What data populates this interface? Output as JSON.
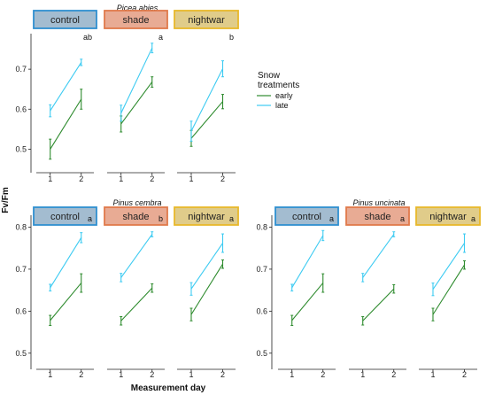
{
  "figure": {
    "ylabel": "Fv/Fm",
    "xlabel": "Measurement day",
    "legend": {
      "title_line1": "Snow",
      "title_line2": "treatments",
      "placement": "right of top row",
      "entries": [
        {
          "name": "early",
          "color": "#2e8b2e"
        },
        {
          "name": "late",
          "color": "#3dcbf2"
        }
      ]
    }
  },
  "colors": {
    "early": "#2e8b2e",
    "late": "#3dcbf2",
    "strip": {
      "control": {
        "fill": "#a3bcd0",
        "border": "#2f8fd0"
      },
      "shade": {
        "fill": "#e8ab94",
        "border": "#e07a4a"
      },
      "nightwar": {
        "fill": "#e0cc8a",
        "border": "#e8b82a"
      }
    }
  },
  "chart_data": [
    {
      "type": "line",
      "title": "Picea abies",
      "ylim": [
        0.45,
        0.78
      ],
      "yticks": [
        "0.5",
        "0.6",
        "0.7"
      ],
      "x": [
        "1",
        "2"
      ],
      "panels": [
        {
          "name": "control",
          "letter": "ab",
          "series": [
            {
              "name": "early",
              "values": [
                0.5,
                0.625
              ],
              "err": [
                0.025,
                0.025
              ]
            },
            {
              "name": "late",
              "values": [
                0.596,
                0.717
              ],
              "err": [
                0.015,
                0.008
              ]
            }
          ]
        },
        {
          "name": "shade",
          "letter": "a",
          "series": [
            {
              "name": "early",
              "values": [
                0.563,
                0.668
              ],
              "err": [
                0.02,
                0.013
              ]
            },
            {
              "name": "late",
              "values": [
                0.59,
                0.753
              ],
              "err": [
                0.02,
                0.012
              ]
            }
          ]
        },
        {
          "name": "nightwar",
          "letter": "b",
          "series": [
            {
              "name": "early",
              "values": [
                0.527,
                0.619
              ],
              "err": [
                0.02,
                0.018
              ]
            },
            {
              "name": "late",
              "values": [
                0.545,
                0.701
              ],
              "err": [
                0.025,
                0.02
              ]
            }
          ]
        }
      ]
    },
    {
      "type": "line",
      "title": "Pinus cembra",
      "ylim": [
        0.47,
        0.82
      ],
      "yticks": [
        "0.5",
        "0.6",
        "0.7",
        "0.8"
      ],
      "x": [
        "1",
        "2"
      ],
      "panels": [
        {
          "name": "control",
          "letter": "a",
          "series": [
            {
              "name": "early",
              "values": [
                0.578,
                0.667
              ],
              "err": [
                0.012,
                0.022
              ]
            },
            {
              "name": "late",
              "values": [
                0.656,
                0.775
              ],
              "err": [
                0.008,
                0.012
              ]
            }
          ]
        },
        {
          "name": "shade",
          "letter": "b",
          "series": [
            {
              "name": "early",
              "values": [
                0.577,
                0.655
              ],
              "err": [
                0.01,
                0.01
              ]
            },
            {
              "name": "late",
              "values": [
                0.68,
                0.783
              ],
              "err": [
                0.01,
                0.006
              ]
            }
          ]
        },
        {
          "name": "nightwar",
          "letter": "a",
          "series": [
            {
              "name": "early",
              "values": [
                0.592,
                0.712
              ],
              "err": [
                0.015,
                0.01
              ]
            },
            {
              "name": "late",
              "values": [
                0.653,
                0.762
              ],
              "err": [
                0.015,
                0.022
              ]
            }
          ]
        }
      ]
    },
    {
      "type": "line",
      "title": "Pinus uncinata",
      "ylim": [
        0.47,
        0.82
      ],
      "yticks": [
        "0.5",
        "0.6",
        "0.7",
        "0.8"
      ],
      "x": [
        "1",
        "2"
      ],
      "panels": [
        {
          "name": "control",
          "letter": "a",
          "series": [
            {
              "name": "early",
              "values": [
                0.578,
                0.667
              ],
              "err": [
                0.012,
                0.022
              ]
            },
            {
              "name": "late",
              "values": [
                0.656,
                0.78
              ],
              "err": [
                0.008,
                0.012
              ]
            }
          ]
        },
        {
          "name": "shade",
          "letter": "a",
          "series": [
            {
              "name": "early",
              "values": [
                0.577,
                0.653
              ],
              "err": [
                0.01,
                0.01
              ]
            },
            {
              "name": "late",
              "values": [
                0.68,
                0.783
              ],
              "err": [
                0.01,
                0.006
              ]
            }
          ]
        },
        {
          "name": "nightwar",
          "letter": "a",
          "series": [
            {
              "name": "early",
              "values": [
                0.592,
                0.71
              ],
              "err": [
                0.015,
                0.01
              ]
            },
            {
              "name": "late",
              "values": [
                0.652,
                0.762
              ],
              "err": [
                0.015,
                0.022
              ]
            }
          ]
        }
      ]
    }
  ]
}
